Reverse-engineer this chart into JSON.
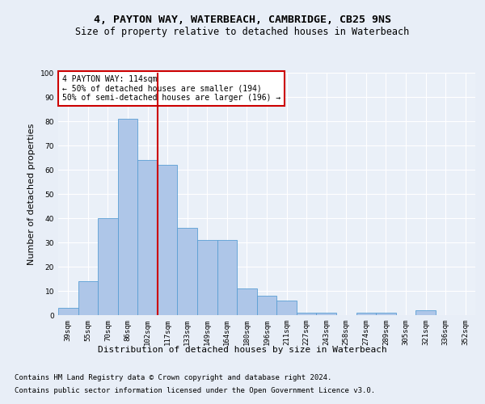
{
  "title1": "4, PAYTON WAY, WATERBEACH, CAMBRIDGE, CB25 9NS",
  "title2": "Size of property relative to detached houses in Waterbeach",
  "xlabel": "Distribution of detached houses by size in Waterbeach",
  "ylabel": "Number of detached properties",
  "categories": [
    "39sqm",
    "55sqm",
    "70sqm",
    "86sqm",
    "102sqm",
    "117sqm",
    "133sqm",
    "149sqm",
    "164sqm",
    "180sqm",
    "196sqm",
    "211sqm",
    "227sqm",
    "243sqm",
    "258sqm",
    "274sqm",
    "289sqm",
    "305sqm",
    "321sqm",
    "336sqm",
    "352sqm"
  ],
  "values": [
    3,
    14,
    40,
    81,
    64,
    62,
    36,
    31,
    31,
    11,
    8,
    6,
    1,
    1,
    0,
    1,
    1,
    0,
    2,
    0,
    0
  ],
  "bar_color": "#aec6e8",
  "bar_edge_color": "#5a9fd4",
  "vline_x_index": 4.5,
  "vline_color": "#cc0000",
  "annotation_title": "4 PAYTON WAY: 114sqm",
  "annotation_line1": "← 50% of detached houses are smaller (194)",
  "annotation_line2": "50% of semi-detached houses are larger (196) →",
  "annotation_box_color": "#cc0000",
  "ylim": [
    0,
    100
  ],
  "yticks": [
    0,
    10,
    20,
    30,
    40,
    50,
    60,
    70,
    80,
    90,
    100
  ],
  "footer1": "Contains HM Land Registry data © Crown copyright and database right 2024.",
  "footer2": "Contains public sector information licensed under the Open Government Licence v3.0.",
  "bg_color": "#e8eef7",
  "plot_bg_color": "#eaf0f8",
  "title_fontsize": 9.5,
  "subtitle_fontsize": 8.5,
  "tick_fontsize": 6.5,
  "label_fontsize": 8,
  "footer_fontsize": 6.5,
  "ann_fontsize": 7
}
